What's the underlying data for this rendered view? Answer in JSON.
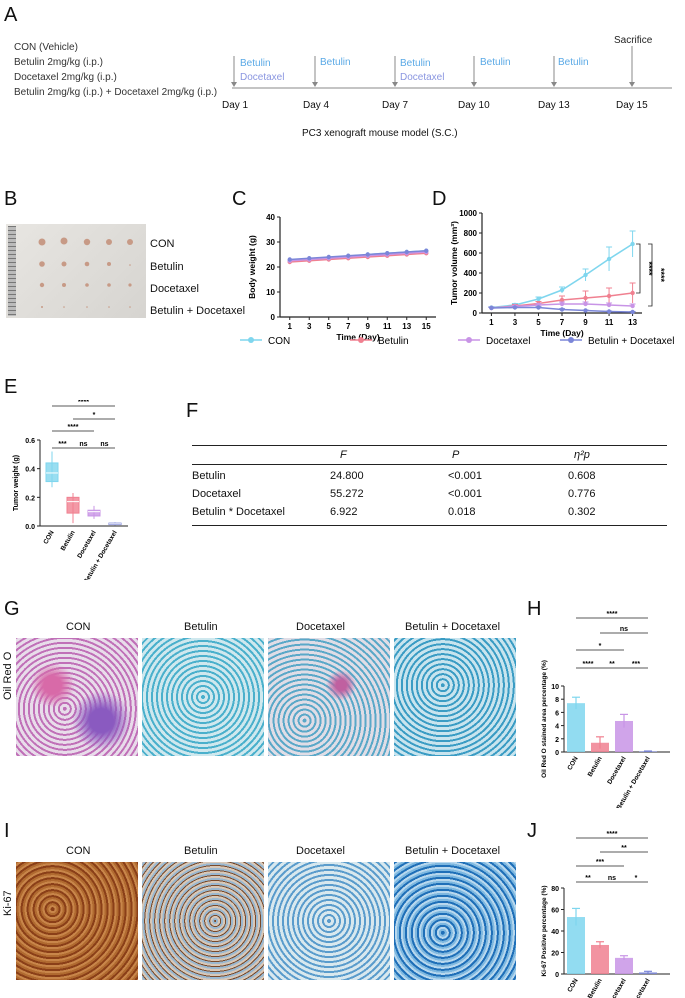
{
  "panels": {
    "A": "A",
    "B": "B",
    "C": "C",
    "D": "D",
    "E": "E",
    "F": "F",
    "G": "G",
    "H": "H",
    "I": "I",
    "J": "J"
  },
  "panelA": {
    "groups": [
      "CON (Vehicle)",
      "Betulin 2mg/kg (i.p.)",
      "Docetaxel 2mg/kg (i.p.)",
      "Betulin 2mg/kg (i.p.) + Docetaxel 2mg/kg (i.p.)"
    ],
    "days": [
      "Day 1",
      "Day 4",
      "Day 7",
      "Day 10",
      "Day 13",
      "Day 15"
    ],
    "events": [
      {
        "betulin": "Betulin",
        "docetaxel": "Docetaxel"
      },
      {
        "betulin": "Betulin",
        "docetaxel": ""
      },
      {
        "betulin": "Betulin",
        "docetaxel": "Docetaxel"
      },
      {
        "betulin": "Betulin",
        "docetaxel": ""
      },
      {
        "betulin": "Betulin",
        "docetaxel": ""
      }
    ],
    "sacrifice": "Sacrifice",
    "model": "PC3 xenograft mouse model (S.C.)"
  },
  "panelB": {
    "labels": [
      "CON",
      "Betulin",
      "Docetaxel",
      "Betulin + Docetaxel"
    ]
  },
  "colors": {
    "CON": "#7fd6ee",
    "Betulin": "#f08090",
    "Docetaxel": "#c894e6",
    "Combo": "#7b86d8",
    "text_blue": "#5aa9e6",
    "text_purple": "#8a96e0"
  },
  "legend": [
    "CON",
    "Betulin",
    "Docetaxel",
    "Betulin + Docetaxel"
  ],
  "chart_data": [
    {
      "id": "C",
      "type": "line",
      "xlabel": "Time (Day)",
      "ylabel": "Body weight (g)",
      "x": [
        1,
        3,
        5,
        7,
        9,
        11,
        13,
        15
      ],
      "xlim": [
        0,
        16
      ],
      "ylim": [
        0,
        40
      ],
      "yticks": [
        0,
        10,
        20,
        30,
        40
      ],
      "series": [
        {
          "name": "CON",
          "values": [
            22.5,
            23.0,
            23.5,
            24.0,
            25.0,
            25.5,
            26.0,
            26.5
          ]
        },
        {
          "name": "Betulin",
          "values": [
            22.0,
            22.5,
            23.0,
            23.5,
            24.0,
            24.5,
            25.0,
            25.5
          ]
        },
        {
          "name": "Docetaxel",
          "values": [
            22.5,
            23.0,
            23.5,
            24.0,
            24.5,
            25.0,
            25.5,
            26.0
          ]
        },
        {
          "name": "Betulin + Docetaxel",
          "values": [
            23.0,
            23.5,
            24.0,
            24.5,
            25.0,
            25.5,
            26.0,
            26.5
          ]
        }
      ]
    },
    {
      "id": "D",
      "type": "line",
      "xlabel": "Time (Day)",
      "ylabel": "Tumor volume (mm³)",
      "x": [
        1,
        3,
        5,
        7,
        9,
        11,
        13
      ],
      "ylim": [
        0,
        1000
      ],
      "yticks": [
        0,
        200,
        400,
        600,
        800,
        1000
      ],
      "series": [
        {
          "name": "CON",
          "values": [
            55,
            80,
            140,
            230,
            380,
            540,
            690
          ],
          "err": [
            10,
            15,
            20,
            30,
            60,
            120,
            130
          ]
        },
        {
          "name": "Betulin",
          "values": [
            50,
            70,
            95,
            130,
            150,
            170,
            200
          ],
          "err": [
            10,
            15,
            20,
            40,
            70,
            80,
            100
          ]
        },
        {
          "name": "Docetaxel",
          "values": [
            50,
            65,
            80,
            90,
            90,
            80,
            70
          ],
          "err": [
            10,
            10,
            15,
            20,
            20,
            20,
            20
          ]
        },
        {
          "name": "Betulin + Docetaxel",
          "values": [
            50,
            55,
            55,
            35,
            25,
            15,
            10
          ],
          "err": [
            5,
            5,
            8,
            8,
            5,
            5,
            5
          ]
        }
      ],
      "sig": [
        "****",
        "****",
        "****"
      ]
    },
    {
      "id": "E",
      "type": "box",
      "ylabel": "Tumor weight (g)",
      "ylim": [
        0,
        0.6
      ],
      "yticks": [
        0.0,
        0.2,
        0.4,
        0.6
      ],
      "categories": [
        "CON",
        "Betulin",
        "Docetaxel",
        "Betulin + Docetaxel"
      ],
      "boxes": [
        {
          "min": 0.27,
          "q1": 0.31,
          "median": 0.37,
          "q3": 0.44,
          "max": 0.52
        },
        {
          "min": 0.02,
          "q1": 0.09,
          "median": 0.17,
          "q3": 0.2,
          "max": 0.23
        },
        {
          "min": 0.05,
          "q1": 0.07,
          "median": 0.1,
          "q3": 0.11,
          "max": 0.14
        },
        {
          "min": 0.005,
          "q1": 0.01,
          "median": 0.015,
          "q3": 0.02,
          "max": 0.025
        }
      ],
      "sig": [
        "****",
        "*",
        "****",
        "***",
        "ns",
        "ns"
      ]
    },
    {
      "id": "H",
      "type": "bar",
      "ylabel": "Oil Red O stained area percentage (%)",
      "ylim": [
        0,
        10
      ],
      "yticks": [
        0,
        2,
        4,
        6,
        8,
        10
      ],
      "categories": [
        "CON",
        "Betulin",
        "Docetaxel",
        "Betulin + Docetaxel"
      ],
      "values": [
        7.4,
        1.4,
        4.7,
        0.1
      ],
      "err": [
        0.9,
        0.9,
        1.0,
        0.05
      ],
      "sig": [
        "****",
        "ns",
        "*",
        "****",
        "**",
        "***"
      ]
    },
    {
      "id": "J",
      "type": "bar",
      "ylabel": "Ki-67 Positive percentage (%)",
      "ylim": [
        0,
        80
      ],
      "yticks": [
        0,
        20,
        40,
        60,
        80
      ],
      "categories": [
        "CON",
        "Betulin",
        "Docetaxel",
        "Betulin + Docetaxel"
      ],
      "values": [
        53,
        27,
        15,
        1.5
      ],
      "err": [
        8,
        3,
        2,
        1
      ],
      "sig": [
        "****",
        "**",
        "***",
        "**",
        "ns",
        "*"
      ]
    }
  ],
  "panelF": {
    "headers": [
      "",
      "F",
      "P",
      "η²p"
    ],
    "rows": [
      [
        "Betulin",
        "24.800",
        "<0.001",
        "0.608"
      ],
      [
        "Docetaxel",
        "55.272",
        "<0.001",
        "0.776"
      ],
      [
        "Betulin * Docetaxel",
        "6.922",
        "0.018",
        "0.302"
      ]
    ]
  },
  "panelG": {
    "side": "Oil Red O",
    "titles": [
      "CON",
      "Betulin",
      "Docetaxel",
      "Betulin + Docetaxel"
    ]
  },
  "panelI": {
    "side": "Ki-67",
    "titles": [
      "CON",
      "Betulin",
      "Docetaxel",
      "Betulin + Docetaxel"
    ]
  }
}
